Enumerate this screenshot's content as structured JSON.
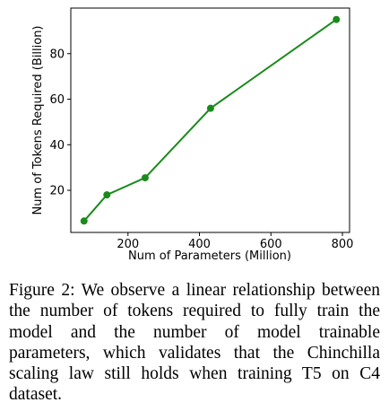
{
  "chart_data": {
    "type": "line",
    "x": [
      77,
      141,
      248,
      431,
      783
    ],
    "series": [
      {
        "values": [
          6.5,
          18,
          25.5,
          56,
          95
        ],
        "color": "#1a8a1a"
      }
    ],
    "xlabel": "Num of Parameters (Million)",
    "ylabel": "Num of Tokens Required (Billion)",
    "xlim": [
      40,
      820
    ],
    "ylim": [
      1.5,
      100
    ],
    "xticks": [
      200,
      400,
      600,
      800
    ],
    "xtick_labels": [
      "200",
      "400",
      "600",
      "800"
    ],
    "yticks": [
      20,
      40,
      60,
      80
    ],
    "ytick_labels": [
      "20",
      "40",
      "60",
      "80"
    ],
    "grid": false,
    "legend": "none"
  },
  "caption": "Figure 2: We observe a linear relationship between the number of tokens required to fully train the model and the number of model trainable parameters, which validates that the Chinchilla scaling law still holds when training T5 on C4 dataset."
}
